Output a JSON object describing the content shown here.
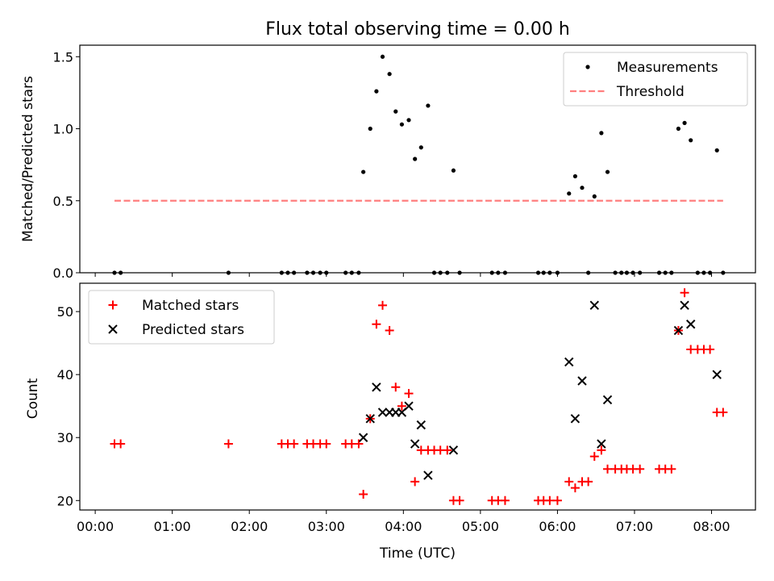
{
  "chart_data": [
    {
      "type": "scatter",
      "title": "Flux total observing time = 0.00 h",
      "xlabel": "",
      "ylabel": "Matched/Predicted stars",
      "xlim": [
        -0.2,
        8.57
      ],
      "ylim": [
        0,
        1.58
      ],
      "yticks": [
        0.0,
        0.5,
        1.0,
        1.5
      ],
      "ytick_labels": [
        "0.0",
        "0.5",
        "1.0",
        "1.5"
      ],
      "legend_position": "top-right",
      "series": [
        {
          "name": "Measurements",
          "color": "#000000",
          "marker": "dot",
          "points": [
            [
              0.25,
              0
            ],
            [
              0.33,
              0
            ],
            [
              1.73,
              0
            ],
            [
              2.42,
              0
            ],
            [
              2.5,
              0
            ],
            [
              2.58,
              0
            ],
            [
              2.75,
              0
            ],
            [
              2.83,
              0
            ],
            [
              2.92,
              0
            ],
            [
              3.0,
              0
            ],
            [
              3.25,
              0
            ],
            [
              3.33,
              0
            ],
            [
              3.42,
              0
            ],
            [
              3.48,
              0.7
            ],
            [
              3.57,
              1.0
            ],
            [
              3.65,
              1.26
            ],
            [
              3.73,
              1.5
            ],
            [
              3.82,
              1.38
            ],
            [
              3.9,
              1.12
            ],
            [
              3.98,
              1.03
            ],
            [
              4.07,
              1.06
            ],
            [
              4.15,
              0.79
            ],
            [
              4.23,
              0.87
            ],
            [
              4.32,
              1.16
            ],
            [
              4.4,
              0
            ],
            [
              4.48,
              0
            ],
            [
              4.57,
              0
            ],
            [
              4.65,
              0.71
            ],
            [
              4.73,
              0
            ],
            [
              5.15,
              0
            ],
            [
              5.23,
              0
            ],
            [
              5.32,
              0
            ],
            [
              5.75,
              0
            ],
            [
              5.82,
              0
            ],
            [
              5.9,
              0
            ],
            [
              6.0,
              0
            ],
            [
              6.15,
              0.55
            ],
            [
              6.23,
              0.67
            ],
            [
              6.32,
              0.59
            ],
            [
              6.4,
              0
            ],
            [
              6.48,
              0.53
            ],
            [
              6.57,
              0.97
            ],
            [
              6.65,
              0.7
            ],
            [
              6.75,
              0
            ],
            [
              6.83,
              0
            ],
            [
              6.9,
              0
            ],
            [
              6.98,
              0
            ],
            [
              7.07,
              0
            ],
            [
              7.32,
              0
            ],
            [
              7.4,
              0
            ],
            [
              7.48,
              0
            ],
            [
              7.57,
              1.0
            ],
            [
              7.65,
              1.04
            ],
            [
              7.73,
              0.92
            ],
            [
              7.82,
              0
            ],
            [
              7.9,
              0
            ],
            [
              7.98,
              0
            ],
            [
              8.07,
              0.85
            ],
            [
              8.15,
              0
            ]
          ]
        },
        {
          "name": "Threshold",
          "color": "#ff7f7f",
          "style": "dashed",
          "points": [
            [
              0.25,
              0.5
            ],
            [
              8.15,
              0.5
            ]
          ]
        }
      ]
    },
    {
      "type": "scatter",
      "title": "",
      "xlabel": "Time (UTC)",
      "ylabel": "Count",
      "xlim": [
        -0.2,
        8.57
      ],
      "ylim": [
        18.5,
        54.5
      ],
      "xticks": [
        0,
        1,
        2,
        3,
        4,
        5,
        6,
        7,
        8
      ],
      "xtick_labels": [
        "00:00",
        "01:00",
        "02:00",
        "03:00",
        "04:00",
        "05:00",
        "06:00",
        "07:00",
        "08:00"
      ],
      "yticks": [
        20,
        30,
        40,
        50
      ],
      "ytick_labels": [
        "20",
        "30",
        "40",
        "50"
      ],
      "legend_position": "top-left",
      "series": [
        {
          "name": "Matched stars",
          "color": "#ff0000",
          "marker": "plus",
          "points": [
            [
              0.25,
              29
            ],
            [
              0.33,
              29
            ],
            [
              1.73,
              29
            ],
            [
              2.42,
              29
            ],
            [
              2.5,
              29
            ],
            [
              2.58,
              29
            ],
            [
              2.75,
              29
            ],
            [
              2.83,
              29
            ],
            [
              2.92,
              29
            ],
            [
              3.0,
              29
            ],
            [
              3.25,
              29
            ],
            [
              3.33,
              29
            ],
            [
              3.42,
              29
            ],
            [
              3.48,
              21
            ],
            [
              3.57,
              33
            ],
            [
              3.65,
              48
            ],
            [
              3.73,
              51
            ],
            [
              3.82,
              47
            ],
            [
              3.9,
              38
            ],
            [
              3.98,
              35
            ],
            [
              4.07,
              37
            ],
            [
              4.15,
              23
            ],
            [
              4.23,
              28
            ],
            [
              4.32,
              28
            ],
            [
              4.4,
              28
            ],
            [
              4.48,
              28
            ],
            [
              4.57,
              28
            ],
            [
              4.65,
              20
            ],
            [
              4.73,
              20
            ],
            [
              5.15,
              20
            ],
            [
              5.23,
              20
            ],
            [
              5.32,
              20
            ],
            [
              5.75,
              20
            ],
            [
              5.82,
              20
            ],
            [
              5.9,
              20
            ],
            [
              6.0,
              20
            ],
            [
              6.15,
              23
            ],
            [
              6.23,
              22
            ],
            [
              6.32,
              23
            ],
            [
              6.4,
              23
            ],
            [
              6.48,
              27
            ],
            [
              6.57,
              28
            ],
            [
              6.65,
              25
            ],
            [
              6.75,
              25
            ],
            [
              6.83,
              25
            ],
            [
              6.9,
              25
            ],
            [
              6.98,
              25
            ],
            [
              7.07,
              25
            ],
            [
              7.32,
              25
            ],
            [
              7.4,
              25
            ],
            [
              7.48,
              25
            ],
            [
              7.57,
              47
            ],
            [
              7.65,
              53
            ],
            [
              7.73,
              44
            ],
            [
              7.82,
              44
            ],
            [
              7.9,
              44
            ],
            [
              7.98,
              44
            ],
            [
              8.07,
              34
            ],
            [
              8.15,
              34
            ]
          ]
        },
        {
          "name": "Predicted stars",
          "color": "#000000",
          "marker": "x",
          "points": [
            [
              3.48,
              30
            ],
            [
              3.57,
              33
            ],
            [
              3.65,
              38
            ],
            [
              3.73,
              34
            ],
            [
              3.82,
              34
            ],
            [
              3.9,
              34
            ],
            [
              3.98,
              34
            ],
            [
              4.07,
              35
            ],
            [
              4.15,
              29
            ],
            [
              4.23,
              32
            ],
            [
              4.32,
              24
            ],
            [
              4.65,
              28
            ],
            [
              6.15,
              42
            ],
            [
              6.23,
              33
            ],
            [
              6.32,
              39
            ],
            [
              6.48,
              51
            ],
            [
              6.57,
              29
            ],
            [
              6.65,
              36
            ],
            [
              7.57,
              47
            ],
            [
              7.65,
              51
            ],
            [
              7.73,
              48
            ],
            [
              8.07,
              40
            ]
          ]
        }
      ]
    }
  ]
}
